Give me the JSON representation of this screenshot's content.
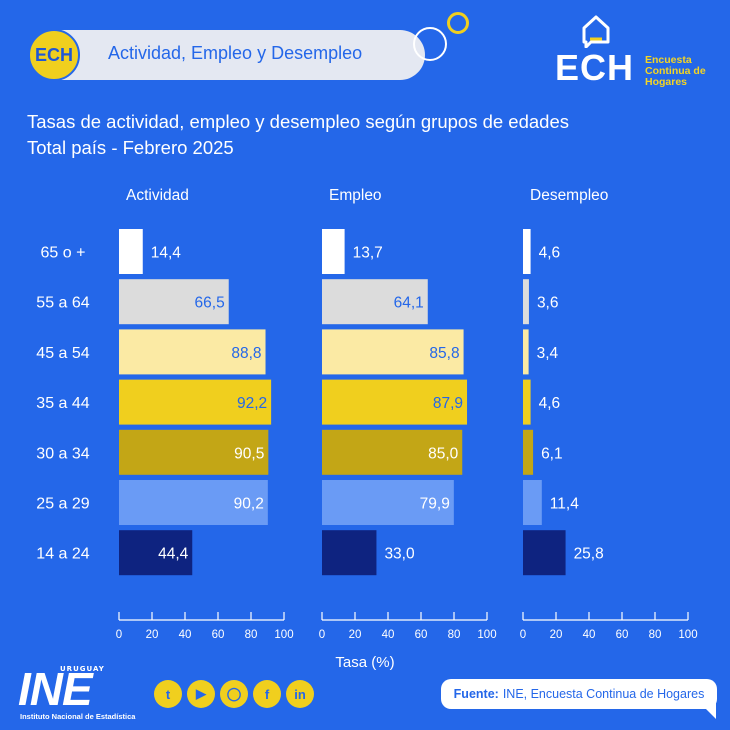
{
  "header": {
    "badge_logo": "ECH",
    "badge_text": "Actividad, Empleo y Desempleo",
    "logo_word": "ECH",
    "logo_sub": [
      "Encuesta",
      "Continua de",
      "Hogares"
    ]
  },
  "title_line1": "Tasas de actividad, empleo y desempleo según grupos de edades",
  "title_line2": "Total país -  Febrero 2025",
  "chart_data": {
    "type": "bar",
    "orientation": "horizontal",
    "categories": [
      "65 o +",
      "55 a 64",
      "45 a 54",
      "35 a 44",
      "30 a 34",
      "25 a 29",
      "14 a 24"
    ],
    "category_colors": [
      "#ffffff",
      "#dcdcdc",
      "#fbeaa4",
      "#f0cf1e",
      "#c3a616",
      "#6a9bf5",
      "#0e2380"
    ],
    "label_colors": [
      "#ffffff",
      "#2467e9",
      "#2467e9",
      "#2467e9",
      "#ffffff",
      "#ffffff",
      "#ffffff"
    ],
    "series": [
      {
        "name": "Actividad",
        "values": [
          14.4,
          66.5,
          88.8,
          92.2,
          90.5,
          90.2,
          44.4
        ],
        "labels": [
          "14,4",
          "66,5",
          "88,8",
          "92,2",
          "90,5",
          "90,2",
          "44,4"
        ]
      },
      {
        "name": "Empleo",
        "values": [
          13.7,
          64.1,
          85.8,
          87.9,
          85.0,
          79.9,
          33.0
        ],
        "labels": [
          "13,7",
          "64,1",
          "85,8",
          "87,9",
          "85,0",
          "79,9",
          "33,0"
        ]
      },
      {
        "name": "Desempleo",
        "values": [
          4.6,
          3.6,
          3.4,
          4.6,
          6.1,
          11.4,
          25.8
        ],
        "labels": [
          "4,6",
          "3,6",
          "3,4",
          "4,6",
          "6,1",
          "11,4",
          "25,8"
        ]
      }
    ],
    "xlim": [
      0,
      100
    ],
    "xticks": [
      0,
      20,
      40,
      60,
      80,
      100
    ],
    "xlabel": "Tasa (%)"
  },
  "footer": {
    "ine_uruguay": "URUGUAY",
    "ine_logo": "INE",
    "ine_sub": "Instituto Nacional de Estadística",
    "social_icons": [
      "twitter-icon",
      "youtube-icon",
      "instagram-icon",
      "facebook-icon",
      "linkedin-icon"
    ],
    "source_label": "Fuente:",
    "source_text": "INE, Encuesta Continua de Hogares"
  }
}
